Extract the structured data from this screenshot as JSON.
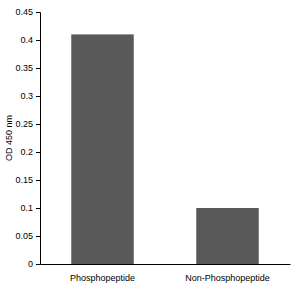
{
  "chart_data": {
    "type": "bar",
    "y_label": "OD 450 nm",
    "categories": [
      "Phosphopeptide",
      "Non-Phosphopeptide"
    ],
    "values": [
      0.41,
      0.1
    ],
    "color": "#595959",
    "ylim": [
      0,
      0.45
    ],
    "yticks": [
      0,
      0.05,
      0.1,
      0.15,
      0.2,
      0.25,
      0.3,
      0.35,
      0.4,
      0.45
    ],
    "grid": false
  }
}
